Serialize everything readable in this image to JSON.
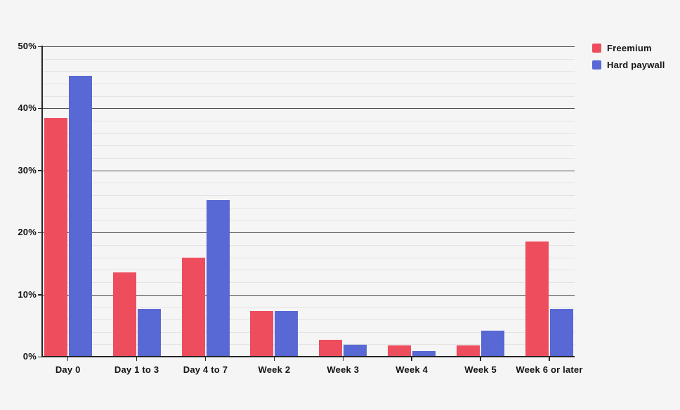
{
  "chart_data": {
    "type": "bar",
    "title": "",
    "categories": [
      "Day 0",
      "Day 1 to 3",
      "Day 4 to 7",
      "Week 2",
      "Week 3",
      "Week 4",
      "Week 5",
      "Week 6 or later"
    ],
    "series": [
      {
        "name": "Freemium",
        "color": "#ee4d5e",
        "values": [
          38.5,
          13.6,
          16.0,
          7.3,
          2.7,
          1.8,
          1.8,
          18.6
        ]
      },
      {
        "name": "Hard paywall",
        "color": "#5868d4",
        "values": [
          45.2,
          7.7,
          25.2,
          7.3,
          1.9,
          0.9,
          4.2,
          7.7
        ]
      }
    ],
    "xlabel": "",
    "ylabel": "",
    "ylim": [
      0,
      50
    ],
    "y_major_step": 10,
    "y_minor_step": 2,
    "y_tick_labels": [
      "0%",
      "10%",
      "20%",
      "30%",
      "40%",
      "50%"
    ],
    "grid": "horizontal",
    "legend_position": "top-right"
  },
  "colors": {
    "background": "#f5f5f5",
    "axis": "#262626",
    "grid_major": "#4f4f4f",
    "grid_minor": "#e3e3e3",
    "text": "#141414",
    "freemium": "#ee4d5e",
    "hard_paywall": "#5868d4"
  }
}
